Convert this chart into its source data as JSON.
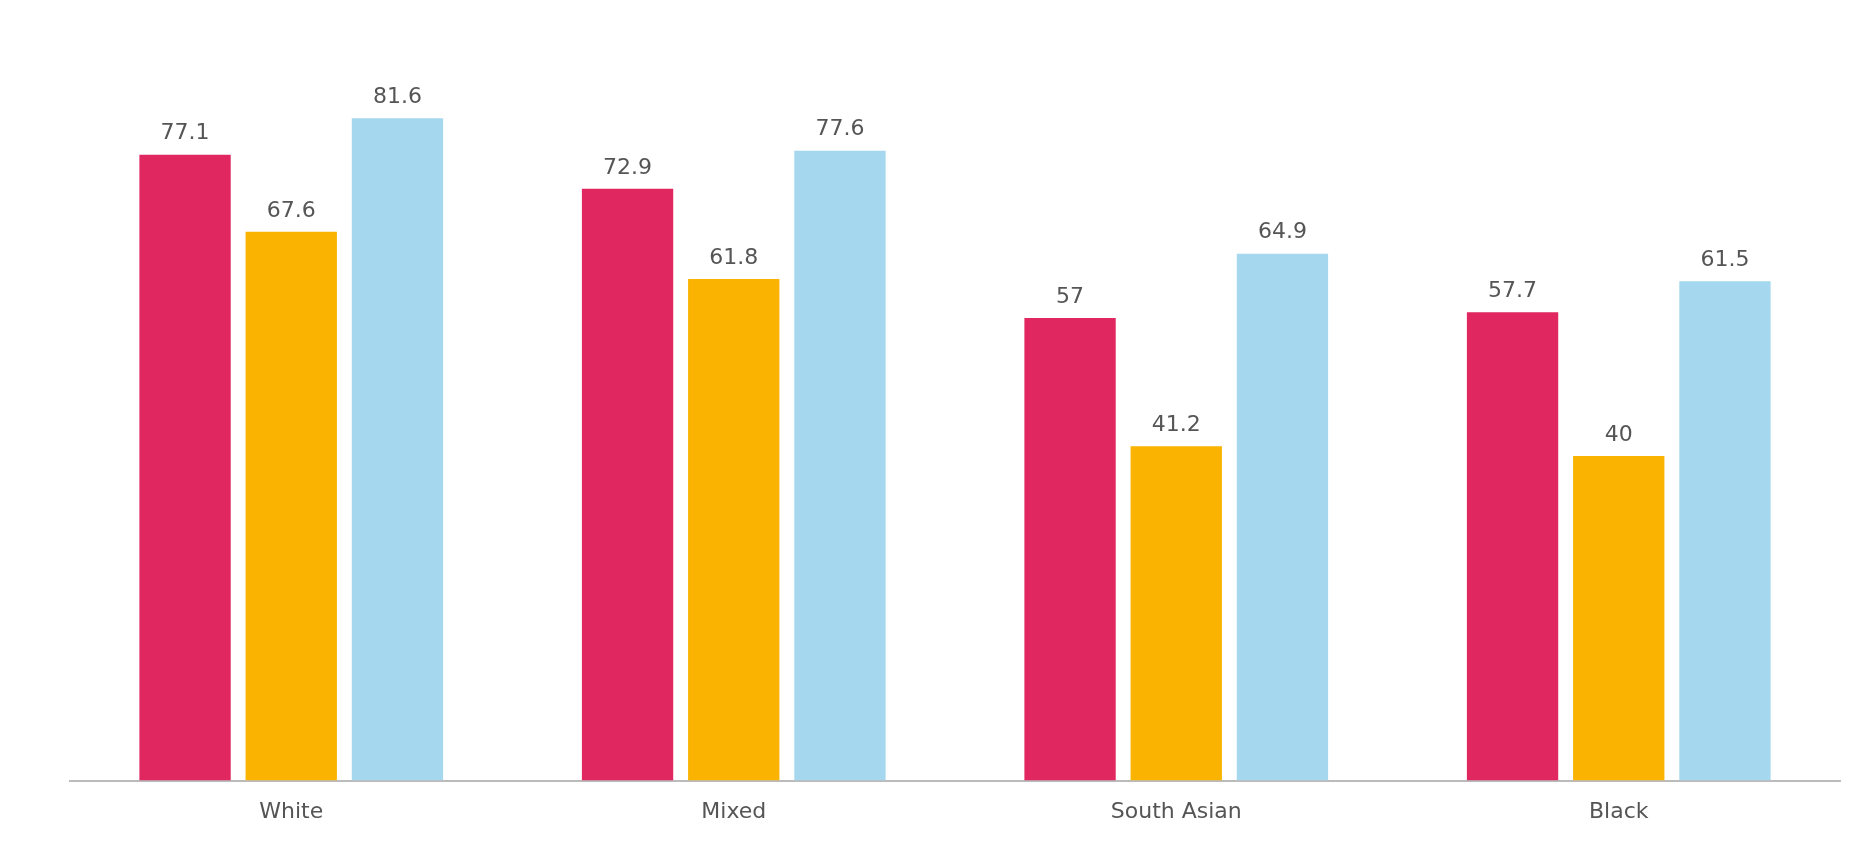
{
  "chart_data": {
    "type": "bar",
    "categories": [
      "White",
      "Mixed",
      "South Asian",
      "Black"
    ],
    "series": [
      {
        "color": "#e0275f",
        "values": [
          77.1,
          72.9,
          57,
          57.7
        ]
      },
      {
        "color": "#f9b300",
        "values": [
          67.6,
          61.8,
          41.2,
          40
        ]
      },
      {
        "color": "#a5d8ef",
        "values": [
          81.6,
          77.6,
          64.9,
          61.5
        ]
      }
    ],
    "data_labels": true,
    "grid": false,
    "legend": false
  }
}
